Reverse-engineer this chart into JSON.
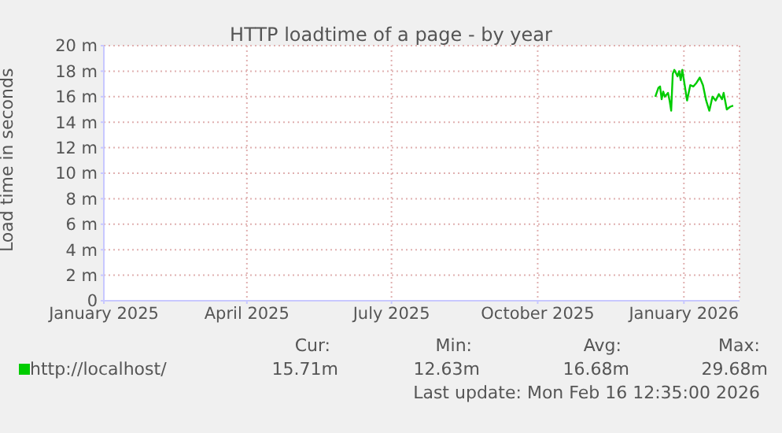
{
  "chart_data": {
    "type": "line",
    "title": "HTTP loadtime of a page - by year",
    "ylabel": "Load time in seconds",
    "x": [
      "2025-12-14",
      "2025-12-16",
      "2025-12-17",
      "2025-12-18",
      "2025-12-19",
      "2025-12-20",
      "2025-12-22",
      "2025-12-23",
      "2025-12-24",
      "2025-12-25",
      "2025-12-26",
      "2025-12-28",
      "2025-12-29",
      "2025-12-30",
      "2025-12-31",
      "2026-01-01",
      "2026-01-03",
      "2026-01-05",
      "2026-01-07",
      "2026-01-09",
      "2026-01-11",
      "2026-01-13",
      "2026-01-15",
      "2026-01-17",
      "2026-01-19",
      "2026-01-21",
      "2026-01-23",
      "2026-01-25",
      "2026-01-26",
      "2026-01-28",
      "2026-01-30",
      "2026-02-01"
    ],
    "series": [
      {
        "name": "http://localhost/",
        "color": "#00cc00",
        "values": [
          16.0,
          16.7,
          16.8,
          15.8,
          16.4,
          16.0,
          16.3,
          15.7,
          14.9,
          17.8,
          18.1,
          17.6,
          18.0,
          17.3,
          18.1,
          17.3,
          15.7,
          16.9,
          16.8,
          17.1,
          17.5,
          16.9,
          15.7,
          14.9,
          16.0,
          15.7,
          16.2,
          15.8,
          16.3,
          15.0,
          15.2,
          15.3
        ]
      }
    ],
    "xlim": [
      "2025-01-01",
      "2026-02-05"
    ],
    "xticks": [
      {
        "value": "2025-01-01",
        "label": "January 2025"
      },
      {
        "value": "2025-04-01",
        "label": "April 2025"
      },
      {
        "value": "2025-07-01",
        "label": "July 2025"
      },
      {
        "value": "2025-10-01",
        "label": "October 2025"
      },
      {
        "value": "2026-01-01",
        "label": "January 2026"
      }
    ],
    "ylim": [
      0,
      20
    ],
    "yticks": [
      0,
      {
        "value": 2,
        "label": "2 m"
      },
      {
        "value": 4,
        "label": "4 m"
      },
      {
        "value": 6,
        "label": "6 m"
      },
      {
        "value": 8,
        "label": "8 m"
      },
      {
        "value": 10,
        "label": "10 m"
      },
      {
        "value": 12,
        "label": "12 m"
      },
      {
        "value": 14,
        "label": "14 m"
      },
      {
        "value": 16,
        "label": "16 m"
      },
      {
        "value": 18,
        "label": "18 m"
      },
      {
        "value": 20,
        "label": "20 m"
      }
    ],
    "grid": true,
    "line_style": "solid",
    "marker": "none",
    "legend": "bottom",
    "annotations": [
      "Cur:",
      "Min:",
      "Avg:",
      "Max:",
      "15.71m",
      "12.63m",
      "16.68m",
      "29.68m",
      "Last update: Mon Feb 16 12:35:00 2026"
    ]
  }
}
